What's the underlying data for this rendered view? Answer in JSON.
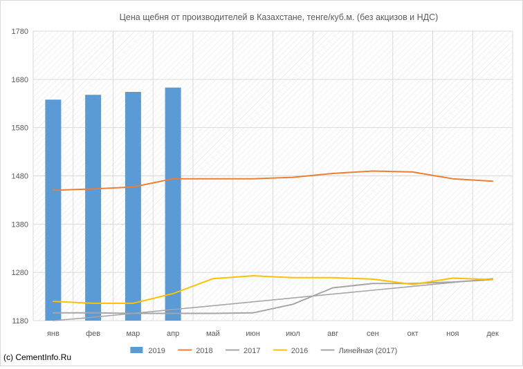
{
  "chart_data": {
    "type": "bar+line",
    "title": "Цена щебня от производителей в Казахстане, тенге/куб.м. (без акцизов и НДС)",
    "categories": [
      "янв",
      "фев",
      "мар",
      "апр",
      "май",
      "июн",
      "июл",
      "авг",
      "сен",
      "окт",
      "ноя",
      "дек"
    ],
    "ylim": [
      1180,
      1780
    ],
    "yticks": [
      1180,
      1280,
      1380,
      1480,
      1580,
      1680,
      1780
    ],
    "grid": true,
    "legend_position": "bottom",
    "series": [
      {
        "name": "2019",
        "kind": "bar",
        "color": "#5b9bd5",
        "values": [
          1638,
          1648,
          1654,
          1663,
          null,
          null,
          null,
          null,
          null,
          null,
          null,
          null
        ]
      },
      {
        "name": "2018",
        "kind": "line",
        "color": "#ed7d31",
        "values": [
          1450,
          1453,
          1457,
          1474,
          1474,
          1474,
          1477,
          1485,
          1490,
          1488,
          1474,
          1469
        ]
      },
      {
        "name": "2017",
        "kind": "line",
        "color": "#a5a5a5",
        "values": [
          1196,
          1196,
          1195,
          1195,
          1195,
          1196,
          1214,
          1248,
          1257,
          1257,
          1260,
          1265
        ]
      },
      {
        "name": "2016",
        "kind": "line",
        "color": "#ffc000",
        "values": [
          1220,
          1216,
          1216,
          1236,
          1267,
          1273,
          1269,
          1269,
          1266,
          1255,
          1268,
          1265
        ]
      },
      {
        "name": "Линейная (2017)",
        "kind": "trendline",
        "color": "#a5a5a5",
        "of": "2017",
        "values": [
          1180,
          1187,
          1195,
          1203,
          1211,
          1219,
          1227,
          1235,
          1243,
          1251,
          1259,
          1267
        ]
      }
    ]
  },
  "credit": "(c) CementInfo.Ru"
}
